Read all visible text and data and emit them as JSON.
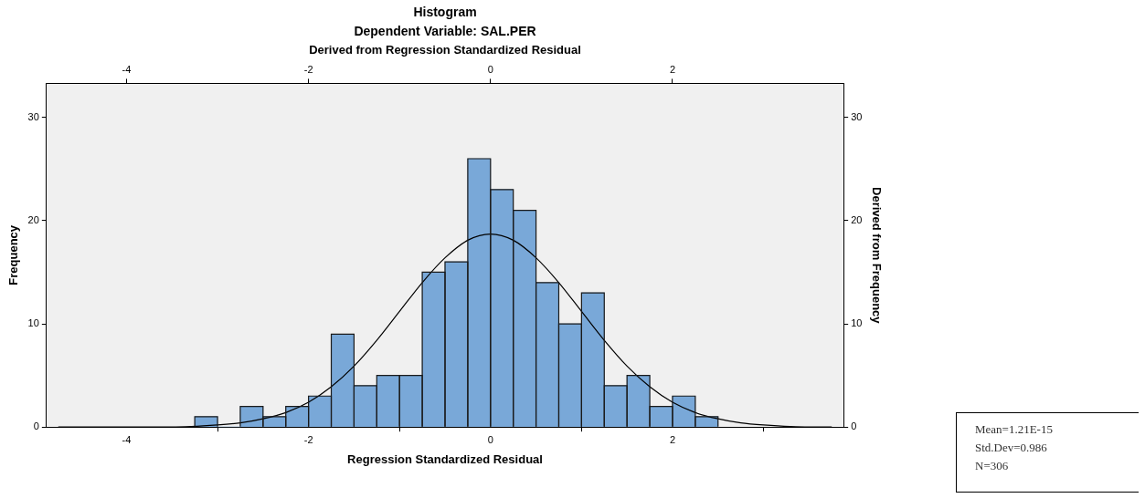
{
  "chart_data": {
    "type": "histogram",
    "title": "Histogram",
    "subtitle": "Dependent Variable: SAL.PER",
    "x2label": "Derived from Regression Standardized Residual",
    "xlabel": "Regression Standardized Residual",
    "ylabel": "Frequency",
    "y2label": "Derived from Frequency",
    "bins": [
      -3.25,
      -3.0,
      -2.75,
      -2.5,
      -2.25,
      -2.0,
      -1.75,
      -1.5,
      -1.25,
      -1.0,
      -0.75,
      -0.5,
      -0.25,
      0,
      0.25,
      0.5,
      0.75,
      1.0,
      1.25,
      1.5,
      1.75,
      2.0,
      2.25,
      2.5
    ],
    "series": [
      {
        "color": "#79a8d8",
        "values": [
          1,
          0,
          2,
          1,
          2,
          3,
          9,
          4,
          5,
          5,
          15,
          16,
          26,
          23,
          21,
          14,
          10,
          13,
          4,
          5,
          2,
          3,
          1
        ]
      },
      {
        "type": "line",
        "color": "#000000",
        "x": [
          -4.75,
          -4.5,
          -4,
          -3.5,
          -3,
          -2.75,
          -2.5,
          -2.25,
          -2,
          -1.75,
          -1.5,
          -1.25,
          -1,
          -0.75,
          -0.5,
          -0.25,
          0,
          0.25,
          0.5,
          0.75,
          1,
          1.25,
          1.5,
          1.75,
          2,
          2.25,
          2.5,
          2.75,
          3,
          3.5,
          3.75
        ],
        "values": [
          0,
          0,
          0,
          0,
          0.2,
          0.4,
          0.8,
          1.4,
          2.4,
          3.9,
          5.9,
          8.4,
          11.2,
          14.0,
          16.4,
          18.1,
          18.7,
          18.1,
          16.4,
          14.0,
          11.2,
          8.4,
          5.9,
          3.9,
          2.4,
          1.4,
          0.8,
          0.4,
          0.2,
          0,
          0
        ]
      }
    ],
    "xlim": [
      -4.88,
      3.88
    ],
    "xticks": [
      -4,
      -2,
      0,
      2
    ],
    "x2lim": [
      -4.88,
      3.88
    ],
    "x2ticks": [
      -4,
      -2,
      0,
      2
    ],
    "ylim": [
      0,
      33.3
    ],
    "yticks": [
      0,
      10,
      20,
      30
    ],
    "y2lim": [
      0,
      33.3
    ],
    "y2ticks": [
      0,
      10,
      20,
      30
    ],
    "marker": "none",
    "legend": false,
    "grid": false,
    "annotations": [
      "Mean=1.21E-15",
      "Std.Dev=0.986",
      "N=306"
    ]
  }
}
